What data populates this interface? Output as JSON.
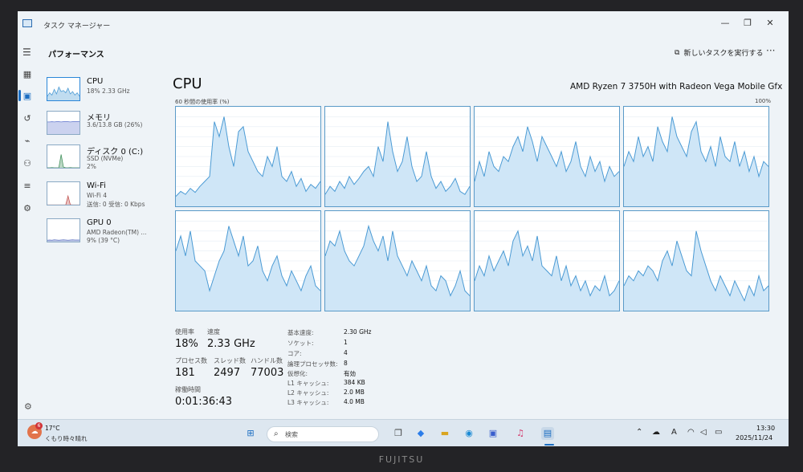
{
  "window": {
    "title": "タスク マネージャー",
    "minimize": "—",
    "maximize": "❐",
    "close": "✕"
  },
  "header": {
    "section_title": "パフォーマンス",
    "run_task": "新しいタスクを実行する",
    "more": "···"
  },
  "resources": [
    {
      "name": "CPU",
      "sub1": "18%  2.33 GHz",
      "sub2": ""
    },
    {
      "name": "メモリ",
      "sub1": "3.6/13.8 GB (26%)",
      "sub2": ""
    },
    {
      "name": "ディスク 0 (C:)",
      "sub1": "SSD (NVMe)",
      "sub2": "2%"
    },
    {
      "name": "Wi-Fi",
      "sub1": "Wi-Fi 4",
      "sub2": "送信: 0  受信: 0 Kbps"
    },
    {
      "name": "GPU 0",
      "sub1": "AMD Radeon(TM) ...",
      "sub2": "9%  (39 °C)"
    }
  ],
  "cpu_panel": {
    "title": "CPU",
    "model": "AMD Ryzen 7 3750H with Radeon Vega Mobile Gfx",
    "usage_label": "60 秒間の使用率 (%)",
    "max_label": "100%"
  },
  "stats": {
    "usage_label": "使用率",
    "usage_value": "18%",
    "speed_label": "速度",
    "speed_value": "2.33 GHz",
    "process_label": "プロセス数",
    "process_value": "181",
    "thread_label": "スレッド数",
    "thread_value": "2497",
    "handle_label": "ハンドル数",
    "handle_value": "77003",
    "uptime_label": "稼働時間",
    "uptime_value": "0:01:36:43"
  },
  "specs": [
    {
      "label": "基本速度:",
      "value": "2.30 GHz"
    },
    {
      "label": "ソケット:",
      "value": "1"
    },
    {
      "label": "コア:",
      "value": "4"
    },
    {
      "label": "論理プロセッサ数:",
      "value": "8"
    },
    {
      "label": "仮想化:",
      "value": "有効"
    },
    {
      "label": "L1 キャッシュ:",
      "value": "384 KB"
    },
    {
      "label": "L2 キャッシュ:",
      "value": "2.0 MB"
    },
    {
      "label": "L3 キャッシュ:",
      "value": "4.0 MB"
    }
  ],
  "taskbar": {
    "weather_temp": "17°C",
    "weather_desc": "くもり時々晴れ",
    "weather_badge": "6",
    "search_placeholder": "検索",
    "time": "13:30",
    "date": "2025/11/24"
  },
  "colors": {
    "accent": "#1b6ec2",
    "graph_line": "#4a9ad4",
    "graph_fill": "#cfe6f7"
  },
  "brand": "FUJITSU",
  "graph_series": [
    [
      10,
      15,
      12,
      18,
      14,
      20,
      25,
      30,
      85,
      70,
      90,
      60,
      40,
      75,
      80,
      55,
      45,
      35,
      30,
      50,
      40,
      60,
      30,
      25,
      35,
      20,
      28,
      15,
      22,
      18,
      25
    ],
    [
      12,
      20,
      15,
      25,
      18,
      30,
      22,
      28,
      35,
      40,
      30,
      60,
      45,
      85,
      55,
      35,
      45,
      70,
      40,
      25,
      30,
      55,
      30,
      18,
      25,
      15,
      20,
      28,
      15,
      12,
      20
    ],
    [
      25,
      45,
      30,
      55,
      40,
      35,
      50,
      45,
      60,
      70,
      55,
      80,
      65,
      45,
      70,
      60,
      50,
      40,
      55,
      35,
      45,
      65,
      40,
      30,
      50,
      35,
      45,
      25,
      40,
      30,
      35
    ],
    [
      40,
      55,
      45,
      70,
      50,
      60,
      45,
      80,
      65,
      55,
      90,
      70,
      60,
      50,
      75,
      85,
      55,
      45,
      60,
      40,
      70,
      50,
      45,
      65,
      40,
      55,
      35,
      50,
      30,
      45,
      40
    ],
    [
      60,
      75,
      55,
      80,
      50,
      45,
      40,
      20,
      35,
      50,
      60,
      85,
      70,
      55,
      75,
      45,
      50,
      65,
      40,
      30,
      45,
      55,
      35,
      25,
      40,
      30,
      20,
      35,
      45,
      25,
      20
    ],
    [
      55,
      70,
      65,
      80,
      60,
      50,
      45,
      55,
      65,
      85,
      70,
      60,
      75,
      50,
      80,
      55,
      45,
      35,
      50,
      40,
      30,
      45,
      25,
      20,
      35,
      30,
      15,
      25,
      40,
      20,
      15
    ],
    [
      30,
      45,
      35,
      55,
      40,
      50,
      60,
      45,
      70,
      80,
      55,
      65,
      50,
      75,
      45,
      40,
      35,
      55,
      30,
      45,
      25,
      35,
      20,
      30,
      15,
      25,
      20,
      35,
      15,
      20,
      30
    ],
    [
      25,
      35,
      30,
      40,
      35,
      45,
      40,
      30,
      50,
      60,
      45,
      70,
      55,
      40,
      35,
      80,
      60,
      45,
      30,
      20,
      35,
      25,
      15,
      30,
      20,
      10,
      25,
      15,
      35,
      20,
      25
    ]
  ],
  "thumb_series": {
    "cpu": [
      20,
      35,
      25,
      50,
      30,
      60,
      40,
      45,
      35,
      55,
      30,
      40,
      25,
      35,
      20
    ],
    "memory": [
      55,
      55,
      56,
      55,
      56,
      56,
      55,
      56,
      56,
      56,
      55,
      56,
      56,
      56,
      56
    ],
    "disk": [
      2,
      2,
      3,
      2,
      2,
      2,
      60,
      5,
      2,
      2,
      3,
      2,
      2,
      2,
      2
    ],
    "wifi": [
      1,
      1,
      1,
      1,
      1,
      1,
      1,
      1,
      1,
      40,
      2,
      1,
      1,
      1,
      1
    ],
    "gpu": [
      8,
      9,
      8,
      10,
      9,
      8,
      9,
      10,
      9,
      8,
      9,
      10,
      9,
      9,
      9
    ]
  }
}
